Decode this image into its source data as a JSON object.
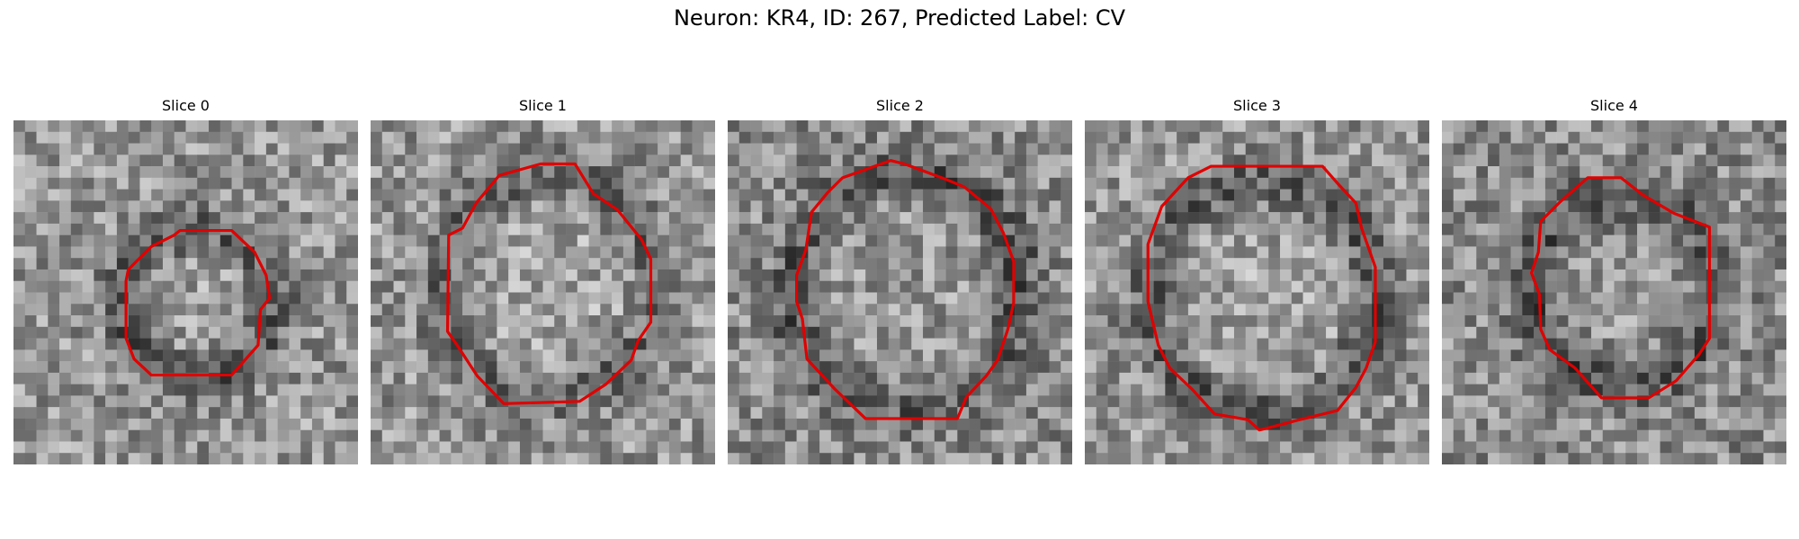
{
  "figure": {
    "title": "Neuron: KR4, ID: 267, Predicted Label: CV",
    "contour_color": "#e00000",
    "colormap": "gray"
  },
  "panels": [
    {
      "title": "Slice 0"
    },
    {
      "title": "Slice 1"
    },
    {
      "title": "Slice 2"
    },
    {
      "title": "Slice 3"
    },
    {
      "title": "Slice 4"
    }
  ]
}
